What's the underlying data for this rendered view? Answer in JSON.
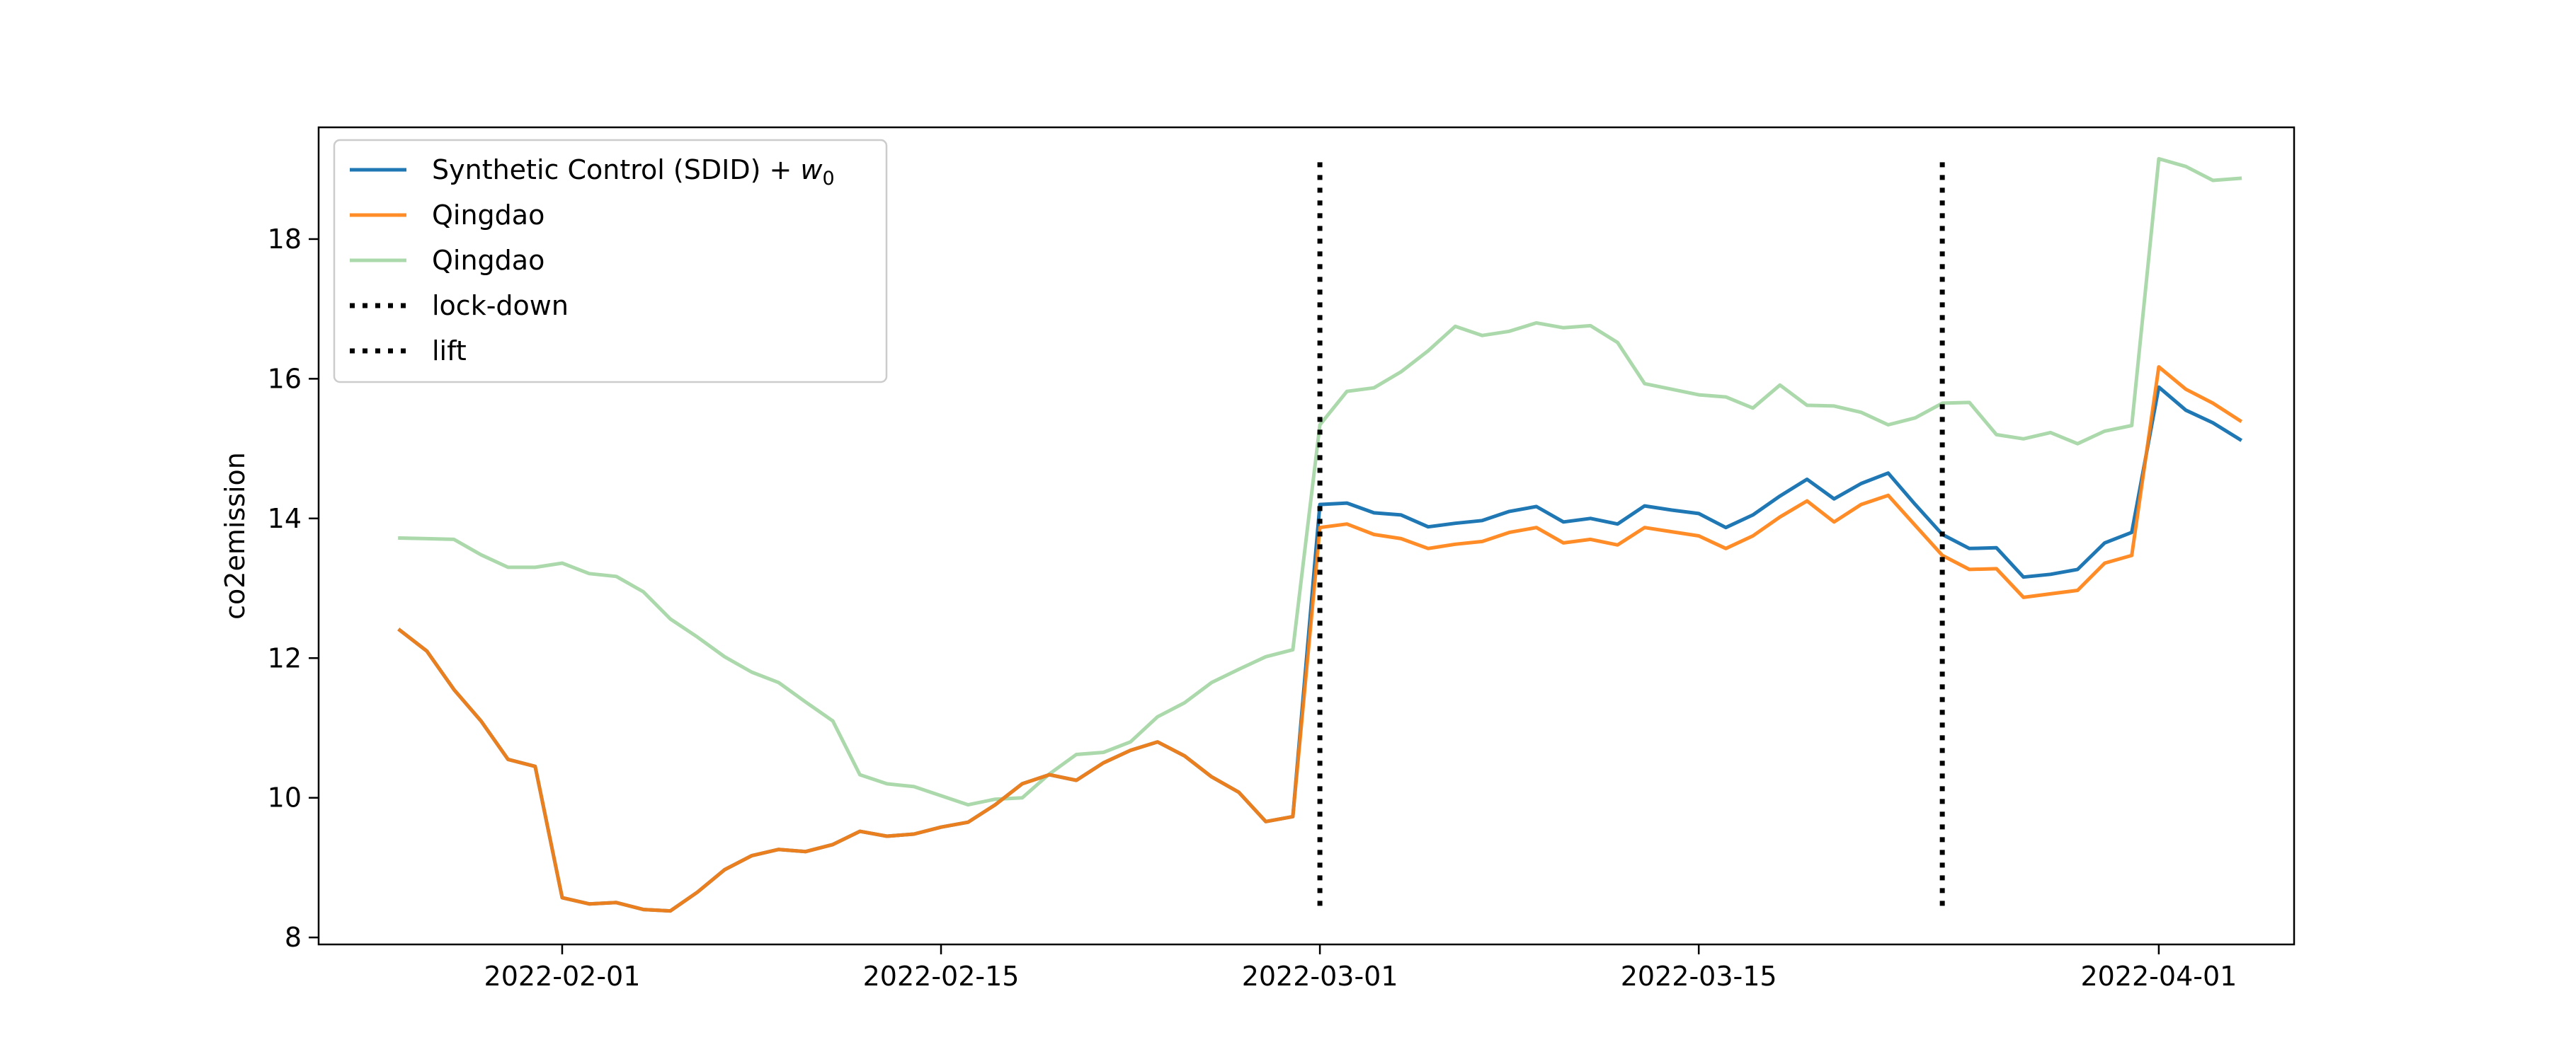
{
  "chart_data": {
    "type": "line",
    "title": "",
    "xlabel": "",
    "ylabel": "co2emission",
    "xlim": [
      "2022-01-23",
      "2022-04-06"
    ],
    "ylim": [
      7.9,
      19.6
    ],
    "xticks": [
      "2022-02-01",
      "2022-02-15",
      "2022-03-01",
      "2022-03-15",
      "2022-04-01"
    ],
    "yticks": [
      8,
      10,
      12,
      14,
      16,
      18
    ],
    "grid": false,
    "legend_position": "top-left",
    "x": [
      "2022-01-26",
      "2022-01-27",
      "2022-01-28",
      "2022-01-29",
      "2022-01-30",
      "2022-01-31",
      "2022-02-01",
      "2022-02-02",
      "2022-02-03",
      "2022-02-04",
      "2022-02-05",
      "2022-02-06",
      "2022-02-07",
      "2022-02-08",
      "2022-02-09",
      "2022-02-10",
      "2022-02-11",
      "2022-02-12",
      "2022-02-13",
      "2022-02-14",
      "2022-02-15",
      "2022-02-16",
      "2022-02-17",
      "2022-02-18",
      "2022-02-19",
      "2022-02-20",
      "2022-02-21",
      "2022-02-22",
      "2022-02-23",
      "2022-02-24",
      "2022-02-25",
      "2022-02-26",
      "2022-02-27",
      "2022-02-28",
      "2022-03-01",
      "2022-03-02",
      "2022-03-03",
      "2022-03-04",
      "2022-03-05",
      "2022-03-06",
      "2022-03-07",
      "2022-03-08",
      "2022-03-09",
      "2022-03-10",
      "2022-03-11",
      "2022-03-12",
      "2022-03-13",
      "2022-03-14",
      "2022-03-15",
      "2022-03-16",
      "2022-03-17",
      "2022-03-18",
      "2022-03-19",
      "2022-03-20",
      "2022-03-21",
      "2022-03-22",
      "2022-03-23",
      "2022-03-24",
      "2022-03-25",
      "2022-03-26",
      "2022-03-27",
      "2022-03-28",
      "2022-03-29",
      "2022-03-30",
      "2022-03-31",
      "2022-04-01",
      "2022-04-02",
      "2022-04-03",
      "2022-04-04"
    ],
    "series": [
      {
        "name": "Synthetic Control (SDID) + ",
        "name_math": "w",
        "name_sub": "0",
        "color": "#1f77b4",
        "opacity": 1,
        "values": [
          12.4,
          12.1,
          11.55,
          11.1,
          10.55,
          10.45,
          8.57,
          8.48,
          8.5,
          8.4,
          8.38,
          8.65,
          8.97,
          9.17,
          9.26,
          9.23,
          9.33,
          9.52,
          9.45,
          9.48,
          9.58,
          9.65,
          9.9,
          10.2,
          10.33,
          10.25,
          10.5,
          10.68,
          10.8,
          10.6,
          10.3,
          10.08,
          9.66,
          9.73,
          14.2,
          14.22,
          14.08,
          14.05,
          13.88,
          13.93,
          13.97,
          14.1,
          14.17,
          13.95,
          14.0,
          13.92,
          14.18,
          14.12,
          14.07,
          13.87,
          14.05,
          14.32,
          14.56,
          14.28,
          14.5,
          14.65,
          14.2,
          13.77,
          13.57,
          13.58,
          13.16,
          13.2,
          13.27,
          13.65,
          13.8,
          15.88,
          15.55,
          15.37,
          15.13
        ]
      },
      {
        "name": "Qingdao",
        "color": "#ff7f0e",
        "opacity": 0.9,
        "values": [
          12.4,
          12.1,
          11.55,
          11.1,
          10.55,
          10.45,
          8.57,
          8.48,
          8.5,
          8.4,
          8.38,
          8.65,
          8.97,
          9.17,
          9.26,
          9.23,
          9.33,
          9.52,
          9.45,
          9.48,
          9.58,
          9.65,
          9.9,
          10.2,
          10.33,
          10.25,
          10.5,
          10.68,
          10.8,
          10.6,
          10.3,
          10.08,
          9.66,
          9.73,
          13.87,
          13.92,
          13.77,
          13.71,
          13.57,
          13.63,
          13.67,
          13.8,
          13.87,
          13.65,
          13.7,
          13.62,
          13.87,
          13.81,
          13.75,
          13.57,
          13.75,
          14.02,
          14.25,
          13.95,
          14.2,
          14.33,
          13.9,
          13.47,
          13.27,
          13.28,
          12.87,
          12.92,
          12.97,
          13.36,
          13.47,
          16.17,
          15.85,
          15.65,
          15.4
        ]
      },
      {
        "name": "Qingdao",
        "color": "#2ca02c",
        "opacity": 0.4,
        "values": [
          13.72,
          13.71,
          13.7,
          13.48,
          13.3,
          13.3,
          13.36,
          13.21,
          13.17,
          12.95,
          12.56,
          12.3,
          12.02,
          11.8,
          11.65,
          11.37,
          11.1,
          10.33,
          10.2,
          10.16,
          10.03,
          9.9,
          9.98,
          10.0,
          10.34,
          10.62,
          10.65,
          10.8,
          11.16,
          11.36,
          11.65,
          11.84,
          12.02,
          12.12,
          15.34,
          15.82,
          15.87,
          16.1,
          16.4,
          16.75,
          16.62,
          16.68,
          16.8,
          16.73,
          16.76,
          16.52,
          15.93,
          15.85,
          15.77,
          15.74,
          15.58,
          15.91,
          15.62,
          15.61,
          15.52,
          15.34,
          15.44,
          15.65,
          15.66,
          15.2,
          15.14,
          15.23,
          15.07,
          15.25,
          15.33,
          19.15,
          19.04,
          18.84,
          18.87
        ]
      }
    ],
    "vlines": [
      {
        "name": "lock-down",
        "x": "2022-03-01",
        "ymin": 8.35,
        "ymax": 19.1,
        "color": "#000000",
        "style": "dotted"
      },
      {
        "name": "lift",
        "x": "2022-03-24",
        "ymin": 8.35,
        "ymax": 19.1,
        "color": "#000000",
        "style": "dotted"
      }
    ]
  }
}
